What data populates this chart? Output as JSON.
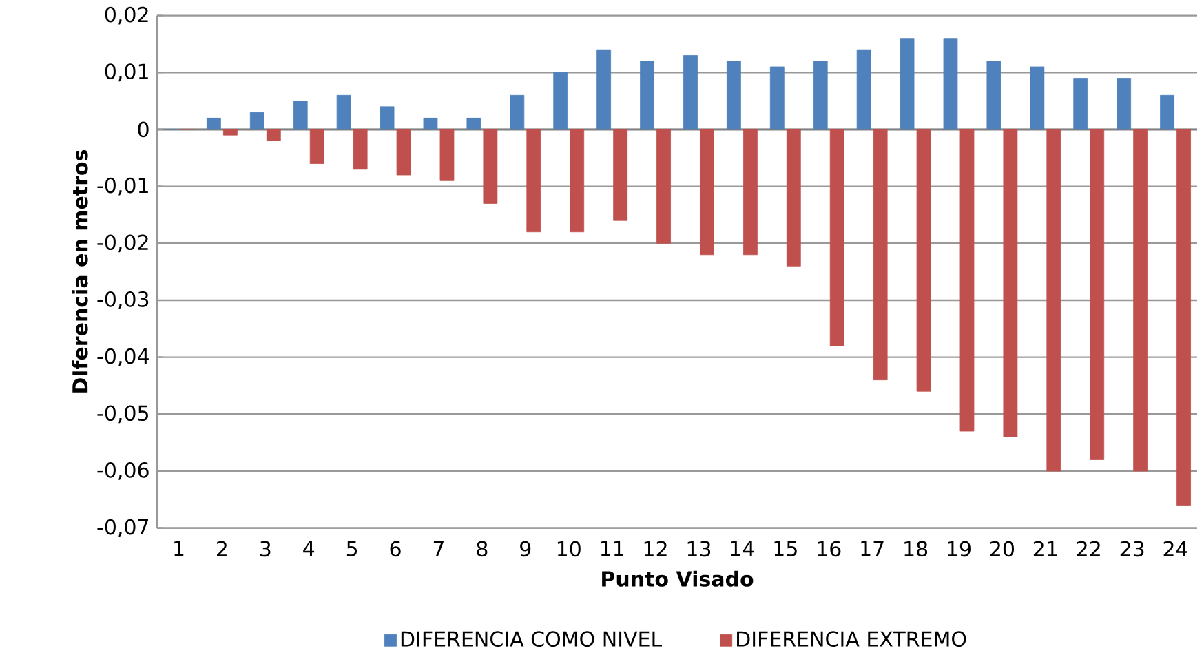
{
  "chart_data": {
    "type": "bar",
    "xlabel": "Punto Visado",
    "ylabel": "DIferencia en metros",
    "categories": [
      "1",
      "2",
      "3",
      "4",
      "5",
      "6",
      "7",
      "8",
      "9",
      "10",
      "11",
      "12",
      "13",
      "14",
      "15",
      "16",
      "17",
      "18",
      "19",
      "20",
      "21",
      "22",
      "23",
      "24"
    ],
    "series": [
      {
        "name": "DIFERENCIA COMO NIVEL",
        "color": "#4f81bd",
        "values": [
          0,
          0.002,
          0.003,
          0.005,
          0.006,
          0.004,
          0.002,
          0.002,
          0.006,
          0.01,
          0.014,
          0.012,
          0.013,
          0.012,
          0.011,
          0.012,
          0.014,
          0.016,
          0.016,
          0.012,
          0.011,
          0.009,
          0.009,
          0.006
        ]
      },
      {
        "name": "DIFERENCIA EXTREMO",
        "color": "#c0504d",
        "values": [
          0,
          -0.001,
          -0.002,
          -0.006,
          -0.007,
          -0.008,
          -0.009,
          -0.013,
          -0.018,
          -0.018,
          -0.016,
          -0.02,
          -0.022,
          -0.022,
          -0.024,
          -0.038,
          -0.044,
          -0.046,
          -0.053,
          -0.054,
          -0.06,
          -0.058,
          -0.06,
          -0.066
        ]
      }
    ],
    "ylim": [
      -0.07,
      0.02
    ],
    "yticks": [
      {
        "value": -0.07,
        "label": "-0,07"
      },
      {
        "value": -0.06,
        "label": "-0,06"
      },
      {
        "value": -0.05,
        "label": "-0,05"
      },
      {
        "value": -0.04,
        "label": "-0,04"
      },
      {
        "value": -0.03,
        "label": "-0,03"
      },
      {
        "value": -0.02,
        "label": "-0,02"
      },
      {
        "value": -0.01,
        "label": "-0,01"
      },
      0,
      {
        "value": 0.01,
        "label": "0,01"
      },
      {
        "value": 0.02,
        "label": "0,02"
      }
    ],
    "grid": "y",
    "legend": "bottom"
  }
}
